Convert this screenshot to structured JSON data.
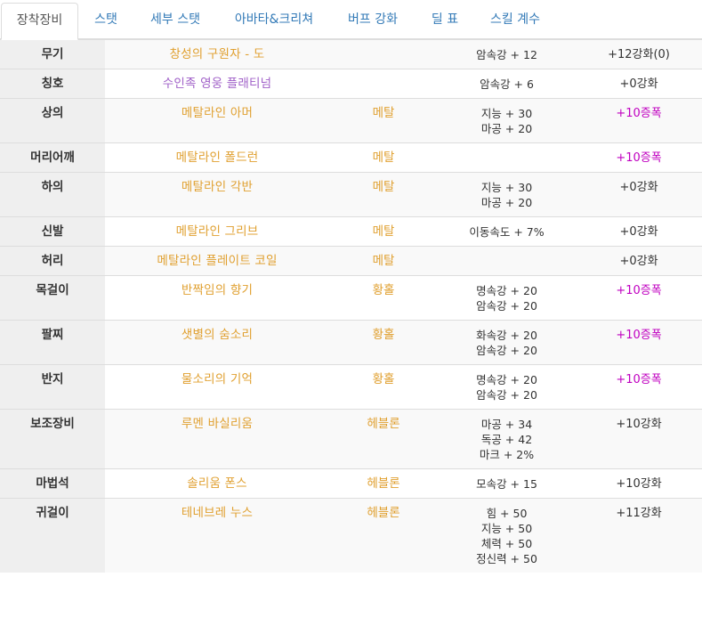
{
  "tabs": [
    {
      "label": "장착장비",
      "active": true
    },
    {
      "label": "스탯",
      "active": false
    },
    {
      "label": "세부 스탯",
      "active": false
    },
    {
      "label": "아바타&크리쳐",
      "active": false
    },
    {
      "label": "버프 강화",
      "active": false
    },
    {
      "label": "딜 표",
      "active": false
    },
    {
      "label": "스킬 계수",
      "active": false
    }
  ],
  "rows": [
    {
      "slot": "무기",
      "item": "창성의 구원자 - 도",
      "item_color": "orange",
      "set": "",
      "stats": [
        "암속강 + 12"
      ],
      "enh": "+12강화(0)",
      "amp": false
    },
    {
      "slot": "칭호",
      "item": "수인족 영웅 플래티넘",
      "item_color": "purple",
      "set": "",
      "stats": [
        "암속강 + 6"
      ],
      "enh": "+0강화",
      "amp": false
    },
    {
      "slot": "상의",
      "item": "메탈라인 아머",
      "item_color": "orange",
      "set": "메탈",
      "stats": [
        "지능 + 30",
        "마공 + 20"
      ],
      "enh": "+10증폭",
      "amp": true
    },
    {
      "slot": "머리어깨",
      "item": "메탈라인 폴드런",
      "item_color": "orange",
      "set": "메탈",
      "stats": [],
      "enh": "+10증폭",
      "amp": true
    },
    {
      "slot": "하의",
      "item": "메탈라인 각반",
      "item_color": "orange",
      "set": "메탈",
      "stats": [
        "지능 + 30",
        "마공 + 20"
      ],
      "enh": "+0강화",
      "amp": false
    },
    {
      "slot": "신발",
      "item": "메탈라인 그리브",
      "item_color": "orange",
      "set": "메탈",
      "stats": [
        "이동속도 + 7%"
      ],
      "enh": "+0강화",
      "amp": false
    },
    {
      "slot": "허리",
      "item": "메탈라인 플레이트 코일",
      "item_color": "orange",
      "set": "메탈",
      "stats": [],
      "enh": "+0강화",
      "amp": false
    },
    {
      "slot": "목걸이",
      "item": "반짝임의 향기",
      "item_color": "orange",
      "set": "황홀",
      "stats": [
        "명속강 + 20",
        "암속강 + 20"
      ],
      "enh": "+10증폭",
      "amp": true
    },
    {
      "slot": "팔찌",
      "item": "샛별의 숨소리",
      "item_color": "orange",
      "set": "황홀",
      "stats": [
        "화속강 + 20",
        "암속강 + 20"
      ],
      "enh": "+10증폭",
      "amp": true
    },
    {
      "slot": "반지",
      "item": "물소리의 기억",
      "item_color": "orange",
      "set": "황홀",
      "stats": [
        "명속강 + 20",
        "암속강 + 20"
      ],
      "enh": "+10증폭",
      "amp": true
    },
    {
      "slot": "보조장비",
      "item": "루멘 바실리움",
      "item_color": "orange",
      "set": "헤블론",
      "stats": [
        "마공 + 34",
        "독공 + 42",
        "마크 + 2%"
      ],
      "enh": "+10강화",
      "amp": false
    },
    {
      "slot": "마법석",
      "item": "솔리움 폰스",
      "item_color": "orange",
      "set": "헤블론",
      "stats": [
        "모속강 + 15"
      ],
      "enh": "+10강화",
      "amp": false
    },
    {
      "slot": "귀걸이",
      "item": "테네브레 누스",
      "item_color": "orange",
      "set": "헤블론",
      "stats": [
        "힘 + 50",
        "지능 + 50",
        "체력 + 50",
        "정신력 + 50"
      ],
      "enh": "+11강화",
      "amp": false
    }
  ]
}
